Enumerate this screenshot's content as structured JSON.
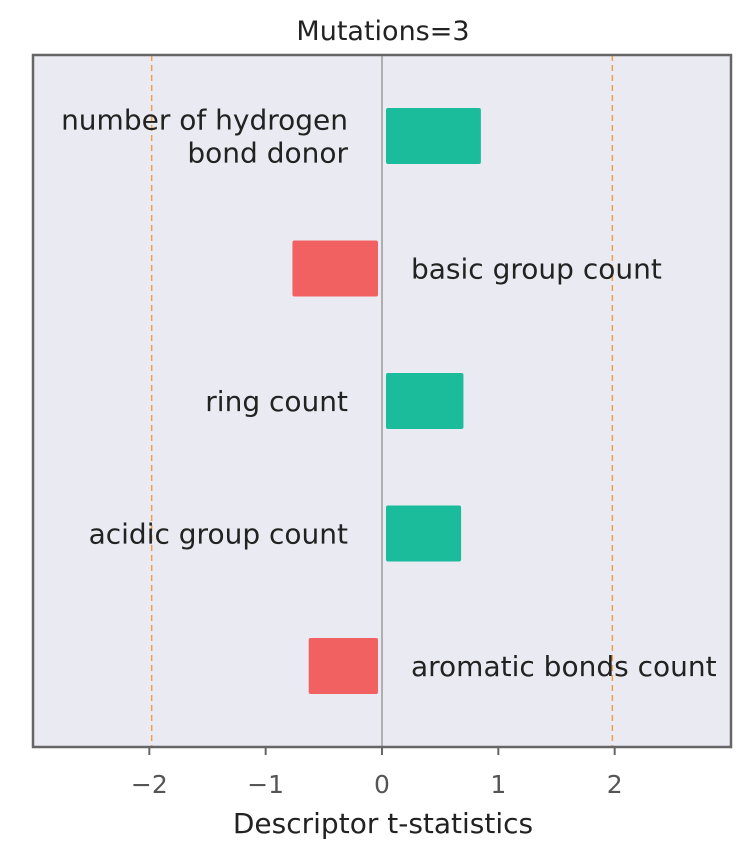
{
  "chart_data": {
    "type": "bar",
    "orientation": "horizontal",
    "title": "Mutations=3",
    "xlabel": "Descriptor t-statistics",
    "ylabel": "",
    "xlim": [
      -3,
      3
    ],
    "xticks": [
      -2,
      -1,
      0,
      1,
      2
    ],
    "xtick_labels": [
      "−2",
      "−1",
      "0",
      "1",
      "2"
    ],
    "threshold_lines": [
      -1.98,
      1.98
    ],
    "grid": false,
    "categories": [
      {
        "lines": [
          "number of hydrogen",
          "bond donor"
        ]
      },
      {
        "lines": [
          "basic group count"
        ]
      },
      {
        "lines": [
          "ring count"
        ]
      },
      {
        "lines": [
          "acidic group count"
        ]
      },
      {
        "lines": [
          "aromatic bonds count"
        ]
      }
    ],
    "values": [
      0.85,
      -0.77,
      0.7,
      0.68,
      -0.63
    ],
    "colors": {
      "positive": "#1abc9c",
      "negative": "#f26161",
      "threshold": "#f0a04b",
      "zero_line": "#888888",
      "background": "#eaeaf2",
      "frame": "#666666"
    }
  }
}
